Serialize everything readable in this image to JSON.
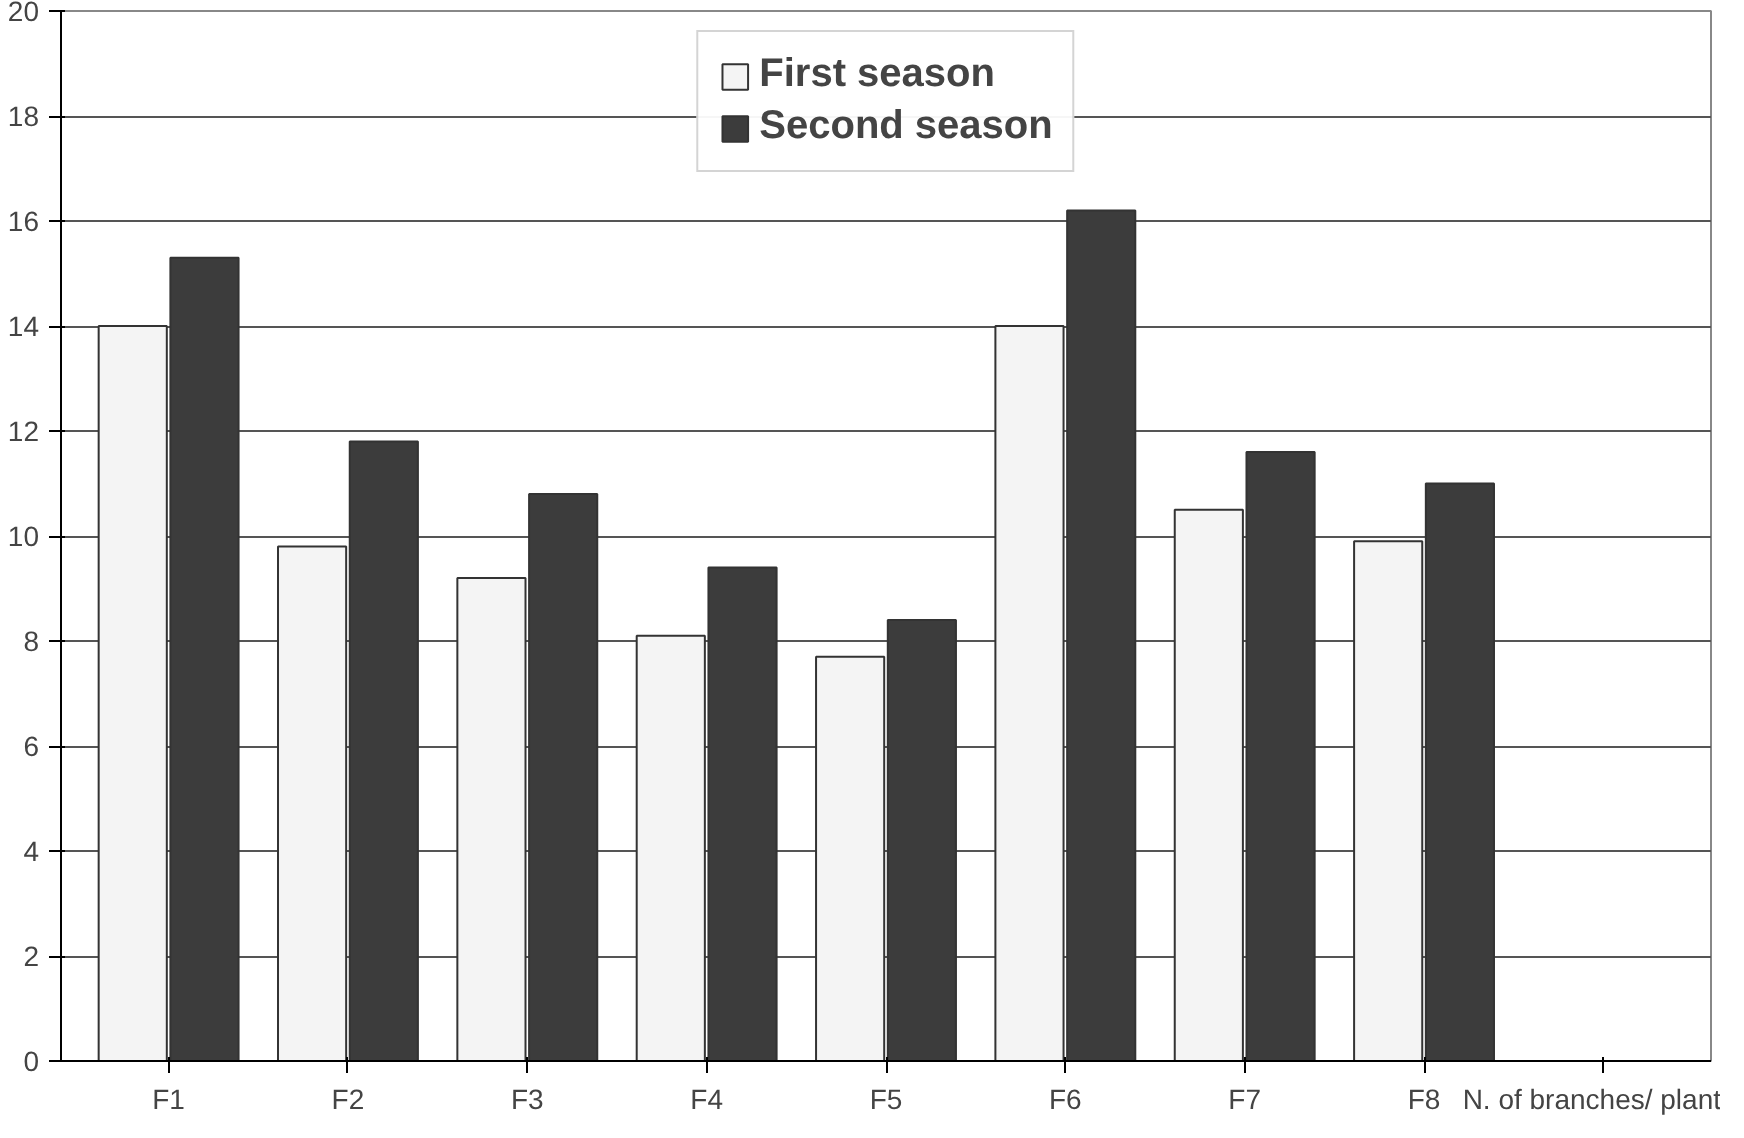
{
  "chart_data": {
    "type": "bar",
    "categories": [
      "F1",
      "F2",
      "F3",
      "F4",
      "F5",
      "F6",
      "F7",
      "F8",
      "N. of branches/ plant"
    ],
    "series": [
      {
        "name": "First season",
        "color": "#f4f4f4",
        "values": [
          14.0,
          9.8,
          9.2,
          8.1,
          7.7,
          14.0,
          10.5,
          9.9,
          null
        ]
      },
      {
        "name": "Second season",
        "color": "#3c3c3c",
        "values": [
          15.3,
          11.8,
          10.8,
          9.4,
          8.4,
          16.2,
          11.6,
          11.0,
          null
        ]
      }
    ],
    "ylim": [
      0,
      20
    ],
    "yticks": [
      0,
      2,
      4,
      6,
      8,
      10,
      12,
      14,
      16,
      18,
      20
    ],
    "grid": "y",
    "legend": "top"
  }
}
